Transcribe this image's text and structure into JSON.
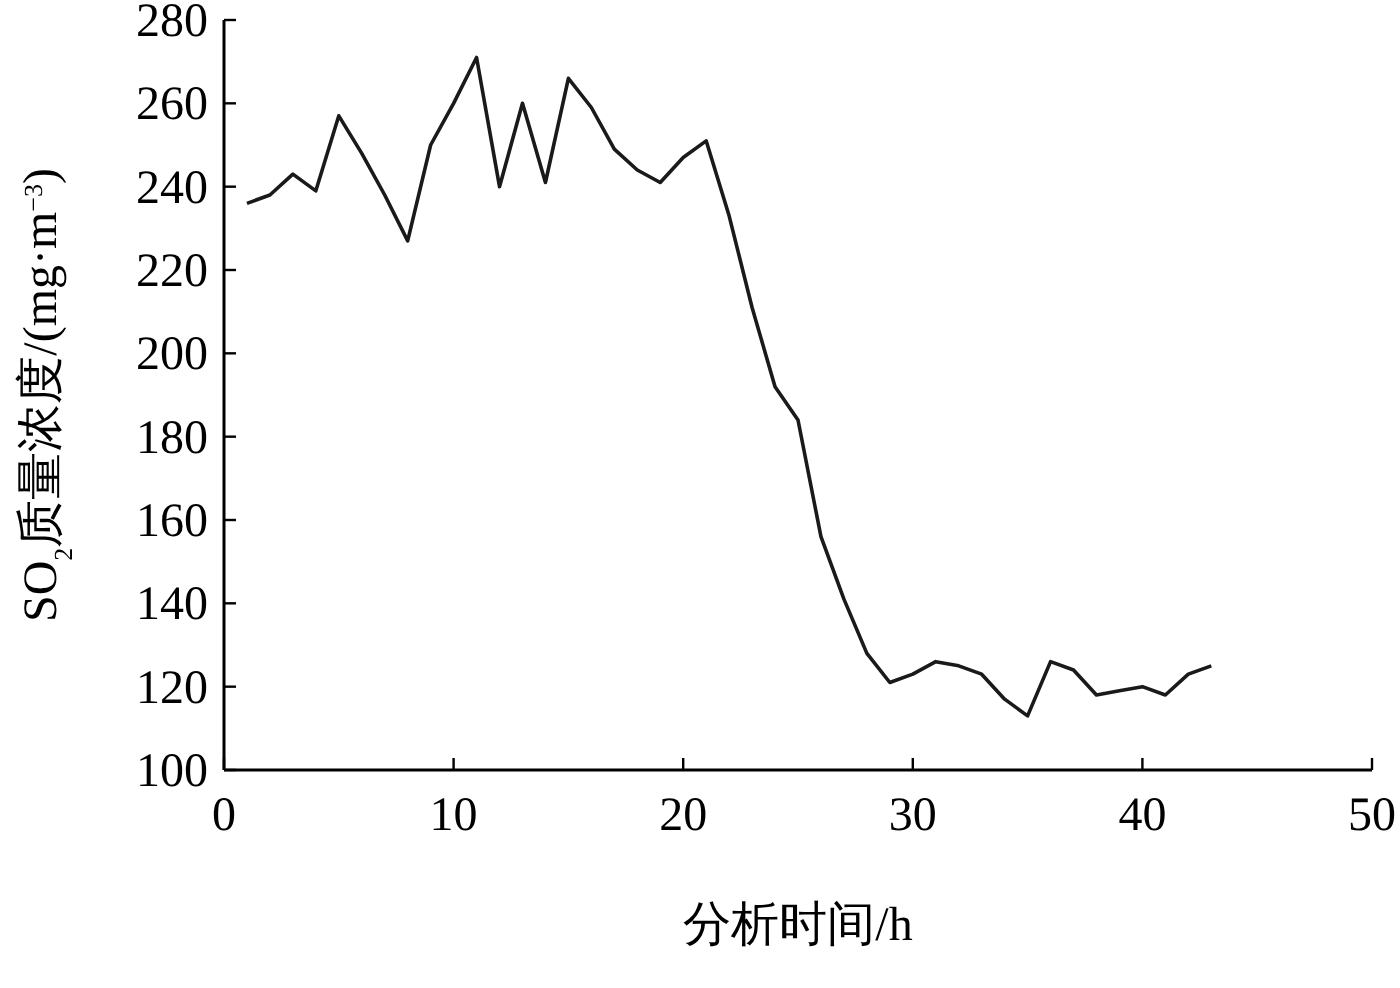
{
  "chart_data": {
    "type": "line",
    "xlabel": "分析时间/h",
    "ylabel": "SO$_{2}$质量浓度/(mg·m$^{−3}$)",
    "x": [
      1,
      2,
      3,
      4,
      5,
      6,
      7,
      8,
      9,
      10,
      11,
      12,
      13,
      14,
      15,
      16,
      17,
      18,
      19,
      20,
      21,
      22,
      23,
      24,
      25,
      26,
      27,
      28,
      29,
      30,
      31,
      32,
      33,
      34,
      35,
      36,
      37,
      38,
      39,
      40,
      41,
      42,
      43
    ],
    "series": [
      {
        "color": "#1a1a1a",
        "values": [
          236,
          238,
          243,
          239,
          257,
          248,
          238,
          227,
          250,
          260,
          271,
          240,
          260,
          241,
          266,
          259,
          249,
          244,
          241,
          247,
          251,
          233,
          211,
          192,
          184,
          156,
          141,
          128,
          121,
          123,
          126,
          125,
          123,
          117,
          113,
          126,
          124,
          118,
          119,
          120,
          118,
          123,
          125
        ]
      }
    ],
    "xlim": [
      0,
      50
    ],
    "ylim": [
      100,
      280
    ],
    "xticks": [
      0,
      10,
      20,
      30,
      40,
      50
    ],
    "yticks": [
      100,
      120,
      140,
      160,
      180,
      200,
      220,
      240,
      260,
      280
    ],
    "grid": false,
    "marker": "none",
    "line_style": "solid"
  }
}
